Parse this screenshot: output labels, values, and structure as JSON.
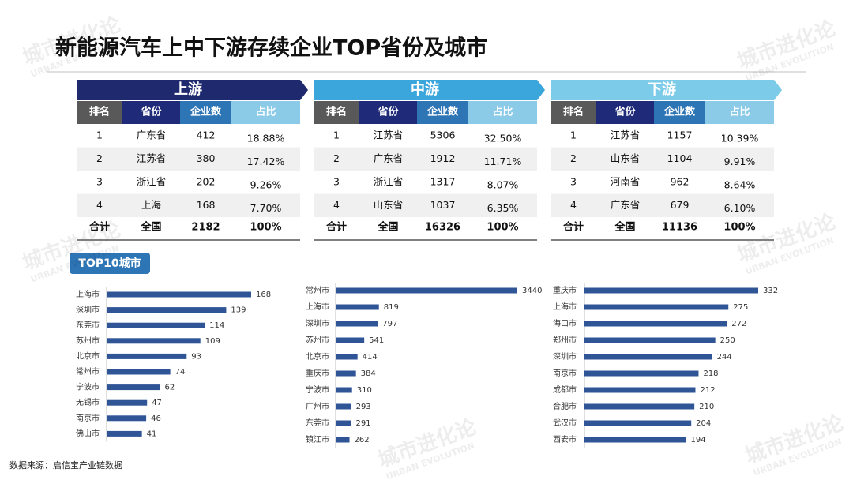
{
  "header": {
    "title": "新能源汽车上中下游存续企业TOP省份及城市"
  },
  "watermark": {
    "name": "城市进化论",
    "sub": "URBAN EVOLUTION"
  },
  "tables": [
    {
      "title": "上游",
      "columns": [
        "排名",
        "省份",
        "企业数",
        "占比"
      ],
      "rows": [
        [
          "1",
          "广东省",
          "412",
          "18.88%"
        ],
        [
          "2",
          "江苏省",
          "380",
          "17.42%"
        ],
        [
          "3",
          "浙江省",
          "202",
          "9.26%"
        ],
        [
          "4",
          "上海",
          "168",
          "7.70%"
        ]
      ],
      "total": [
        "合计",
        "全国",
        "2182",
        "100%"
      ]
    },
    {
      "title": "中游",
      "columns": [
        "排名",
        "省份",
        "企业数",
        "占比"
      ],
      "rows": [
        [
          "1",
          "江苏省",
          "5306",
          "32.50%"
        ],
        [
          "2",
          "广东省",
          "1912",
          "11.71%"
        ],
        [
          "3",
          "浙江省",
          "1317",
          "8.07%"
        ],
        [
          "4",
          "山东省",
          "1037",
          "6.35%"
        ]
      ],
      "total": [
        "合计",
        "全国",
        "16326",
        "100%"
      ]
    },
    {
      "title": "下游",
      "columns": [
        "排名",
        "省份",
        "企业数",
        "占比"
      ],
      "rows": [
        [
          "1",
          "江苏省",
          "1157",
          "10.39%"
        ],
        [
          "2",
          "山东省",
          "1104",
          "9.91%"
        ],
        [
          "3",
          "河南省",
          "962",
          "8.64%"
        ],
        [
          "4",
          "广东省",
          "679",
          "6.10%"
        ]
      ],
      "total": [
        "合计",
        "全国",
        "11136",
        "100%"
      ]
    }
  ],
  "section_label": "TOP10城市",
  "chart_data": [
    {
      "type": "hbar",
      "color": "#2f5597",
      "categories": [
        "上海市",
        "深圳市",
        "东莞市",
        "苏州市",
        "北京市",
        "常州市",
        "宁波市",
        "无锡市",
        "南京市",
        "佛山市"
      ],
      "values": [
        168,
        139,
        114,
        109,
        93,
        74,
        62,
        47,
        46,
        41
      ]
    },
    {
      "type": "hbar",
      "color": "#2f5597",
      "categories": [
        "常州市",
        "上海市",
        "深圳市",
        "苏州市",
        "北京市",
        "重庆市",
        "宁波市",
        "广州市",
        "东莞市",
        "镇江市"
      ],
      "values": [
        3440,
        819,
        797,
        541,
        414,
        384,
        310,
        293,
        291,
        262
      ]
    },
    {
      "type": "hbar",
      "color": "#2f5597",
      "categories": [
        "重庆市",
        "上海市",
        "海口市",
        "郑州市",
        "深圳市",
        "南京市",
        "成都市",
        "合肥市",
        "武汉市",
        "西安市"
      ],
      "values": [
        332,
        275,
        272,
        250,
        244,
        218,
        212,
        210,
        204,
        194
      ]
    }
  ],
  "source": "数据来源：启信宝产业链数据"
}
